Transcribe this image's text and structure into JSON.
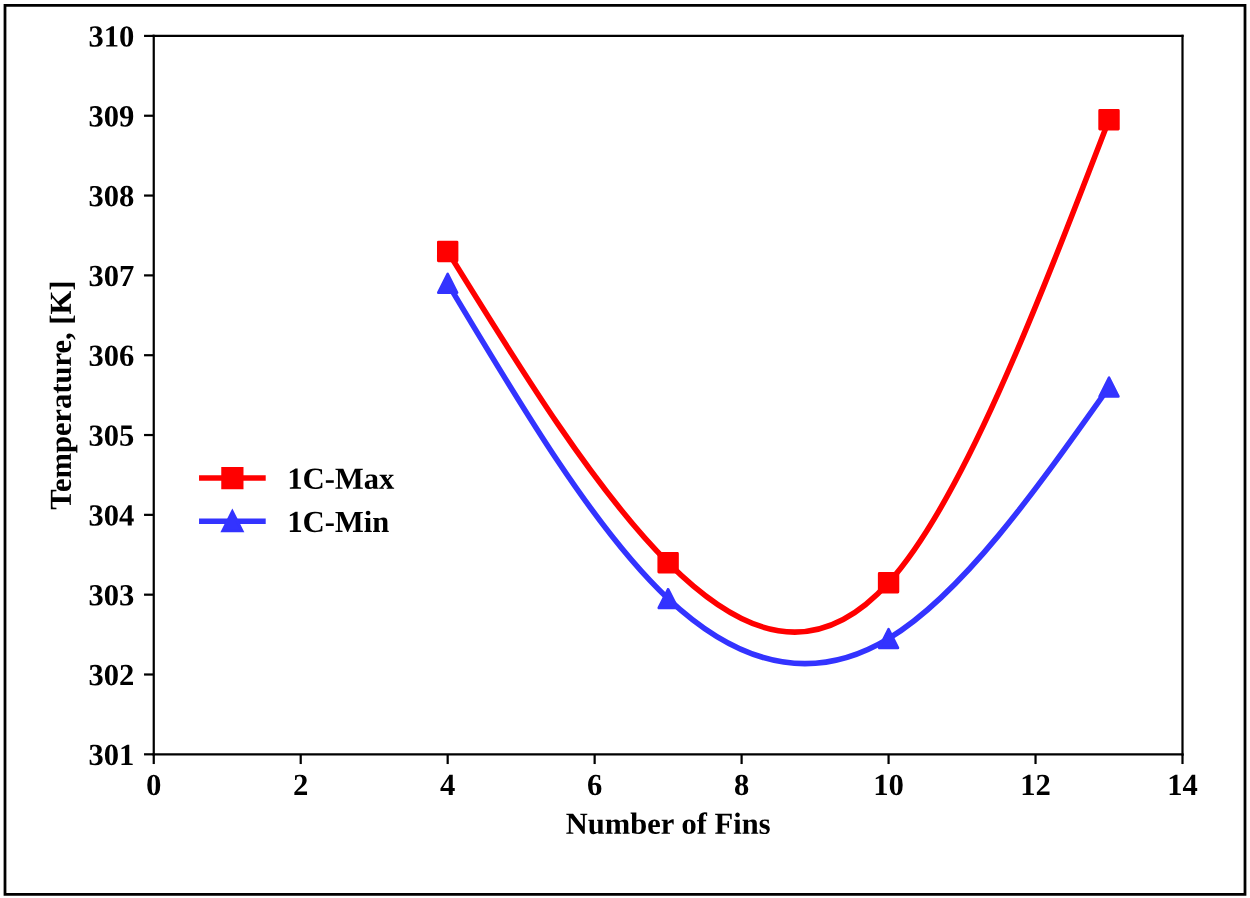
{
  "chart_data": {
    "type": "line",
    "xlabel": "Number of Fins",
    "ylabel": "Temperature, [K]",
    "x": [
      4,
      7,
      10,
      13
    ],
    "series": [
      {
        "name": "1C-Max",
        "color": "#ff0000",
        "marker": "square",
        "values": [
          307.3,
          303.4,
          303.15,
          308.95
        ]
      },
      {
        "name": "1C-Min",
        "color": "#3333ff",
        "marker": "triangle",
        "values": [
          306.9,
          302.95,
          302.45,
          305.6
        ]
      }
    ],
    "xlim": [
      0,
      14
    ],
    "xticks": [
      0,
      2,
      4,
      6,
      8,
      10,
      12,
      14
    ],
    "ylim": [
      301,
      310
    ],
    "yticks": [
      301,
      302,
      303,
      304,
      305,
      306,
      307,
      308,
      309,
      310
    ],
    "grid": false,
    "legend": "center left",
    "line_style": "solid"
  }
}
